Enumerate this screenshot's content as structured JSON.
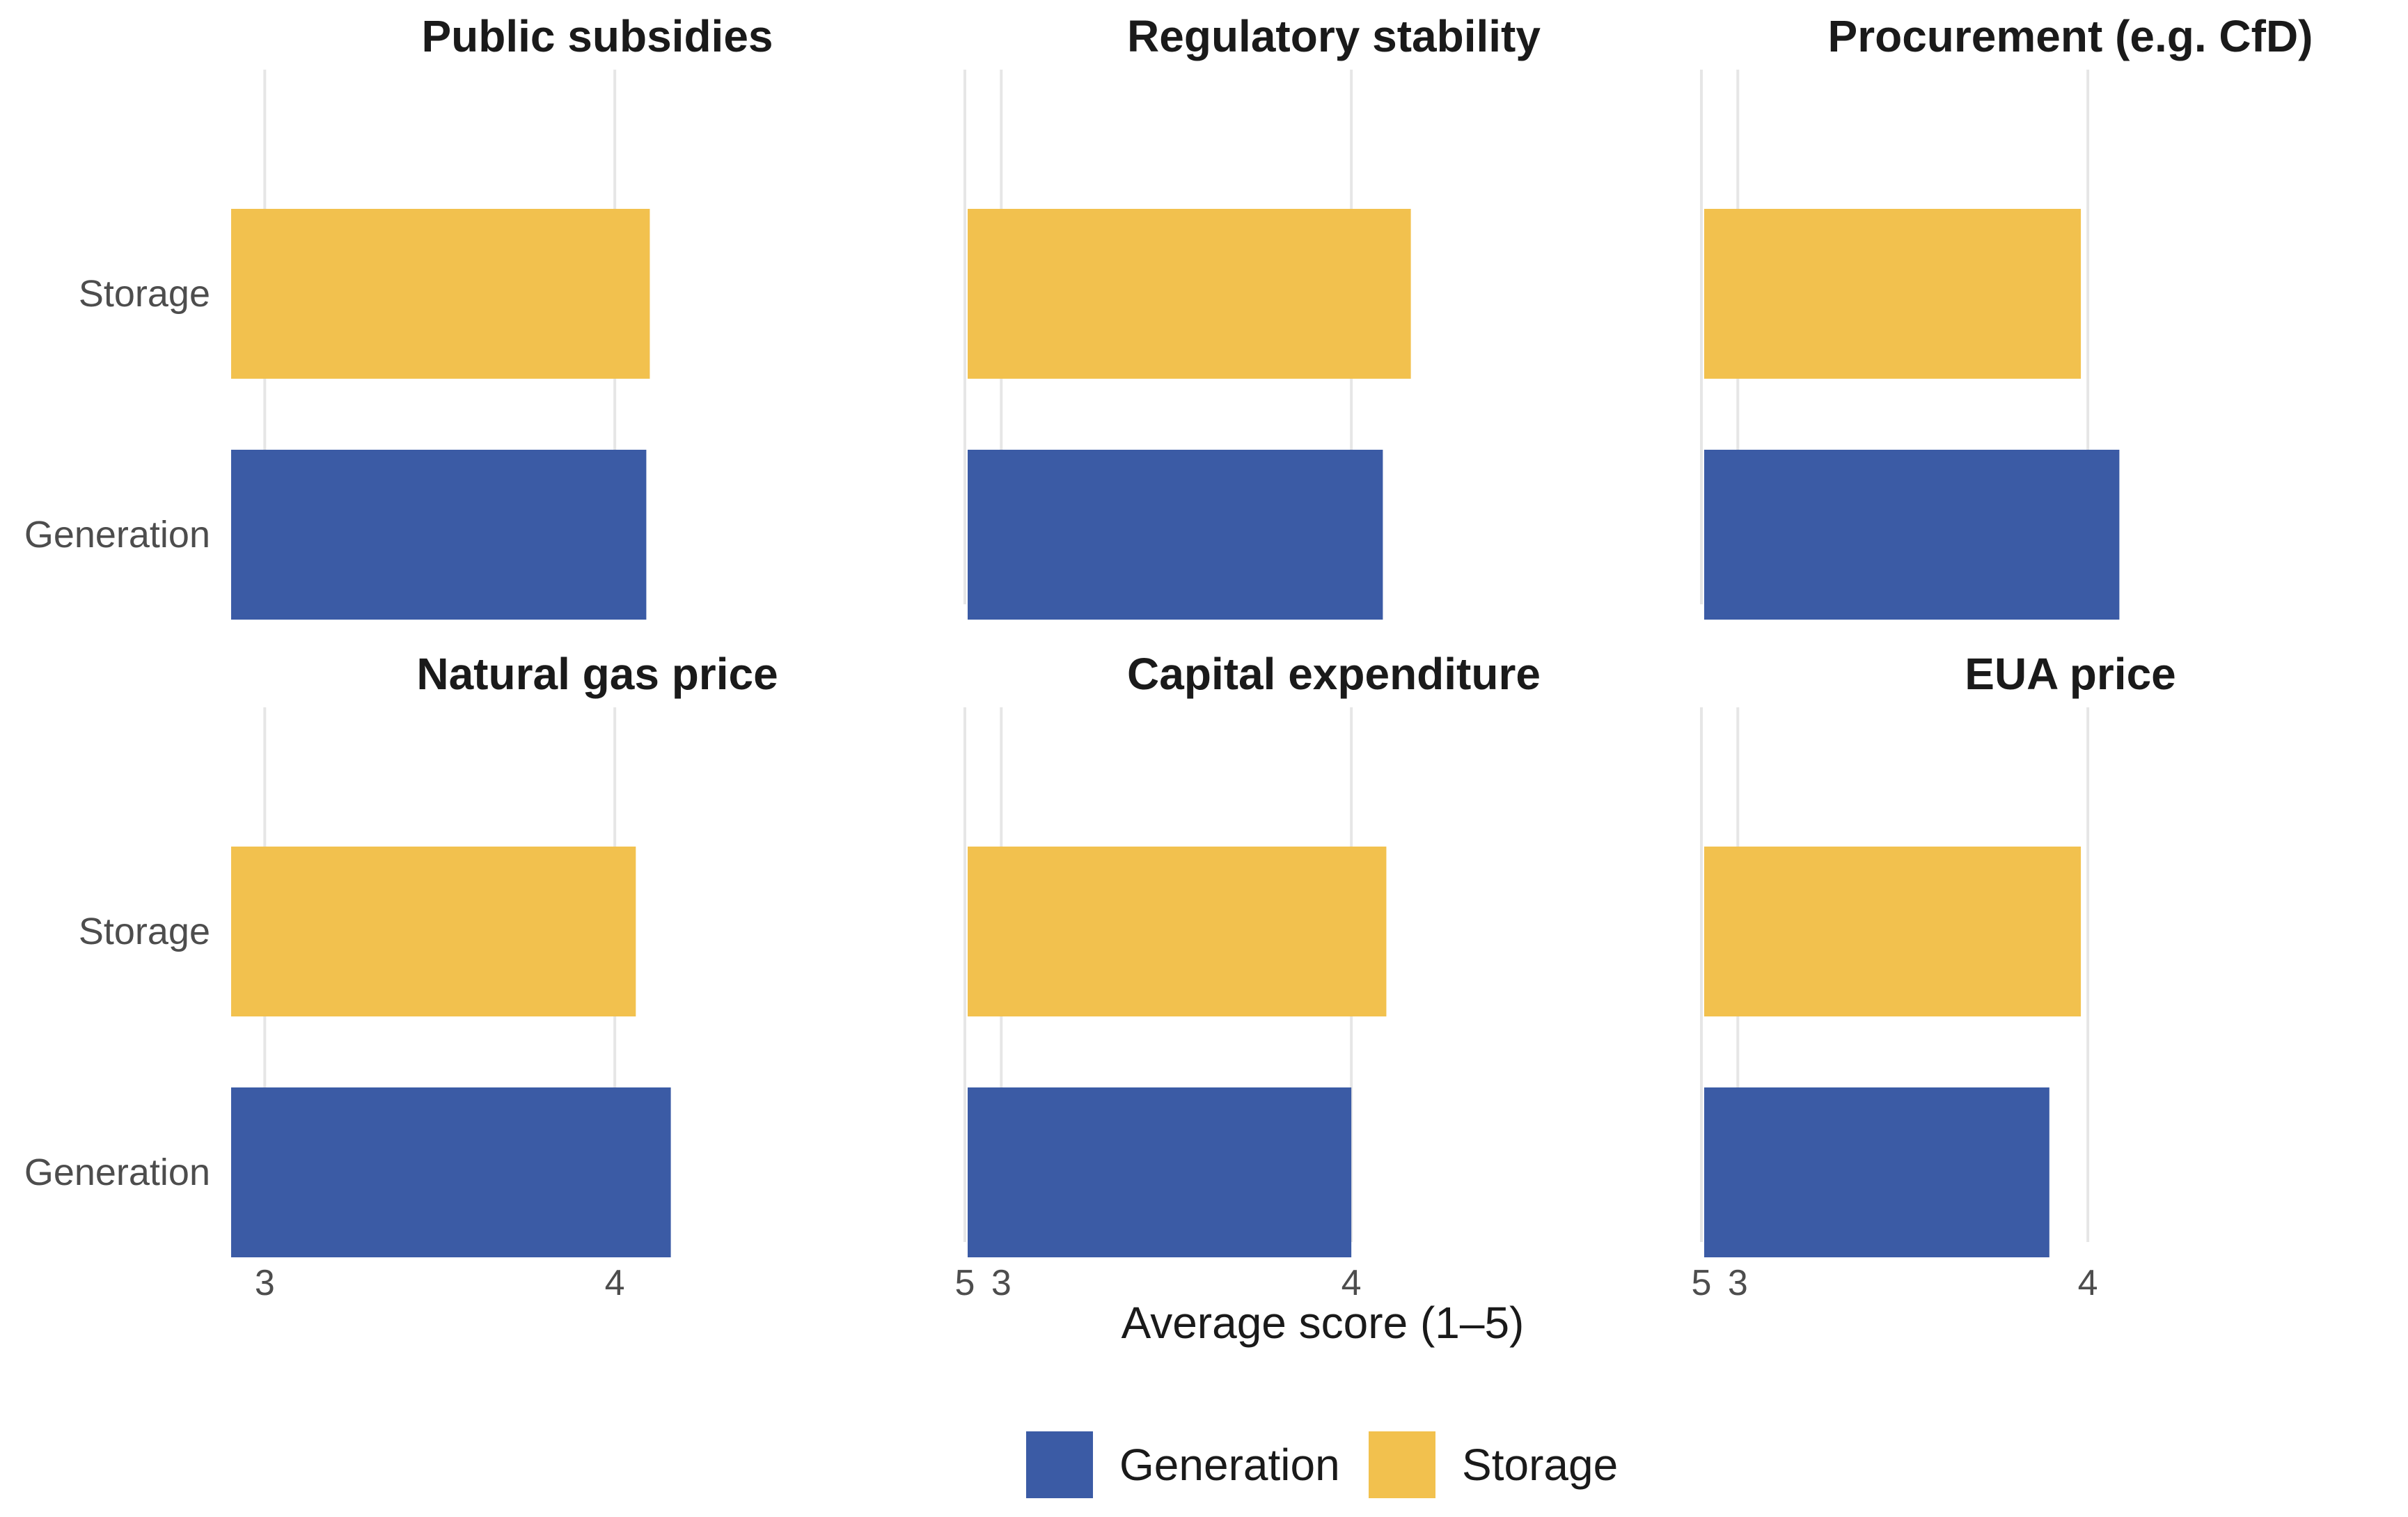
{
  "chart_data": {
    "type": "bar",
    "orientation": "horizontal",
    "facet_layout": "3x2",
    "xlabel": "Average score (1–5)",
    "xlim": [
      2.9,
      5
    ],
    "xticks": [
      3,
      4,
      5
    ],
    "grid": true,
    "legend_position": "bottom",
    "categories": [
      "Storage",
      "Generation"
    ],
    "legend": [
      {
        "name": "Generation",
        "color": "#3b5ba5"
      },
      {
        "name": "Storage",
        "color": "#f2c14e"
      }
    ],
    "facets": [
      {
        "title": "Public subsidies",
        "values": {
          "Storage": 4.1,
          "Generation": 4.09
        }
      },
      {
        "title": "Regulatory stability",
        "values": {
          "Storage": 4.17,
          "Generation": 4.09
        }
      },
      {
        "title": "Procurement (e.g. CfD)",
        "values": {
          "Storage": 3.98,
          "Generation": 4.09
        }
      },
      {
        "title": "Natural gas price",
        "values": {
          "Storage": 4.06,
          "Generation": 4.16
        }
      },
      {
        "title": "Capital expenditure",
        "values": {
          "Storage": 4.1,
          "Generation": 4.0
        }
      },
      {
        "title": "EUA price",
        "values": {
          "Storage": 3.98,
          "Generation": 3.89
        }
      }
    ]
  }
}
